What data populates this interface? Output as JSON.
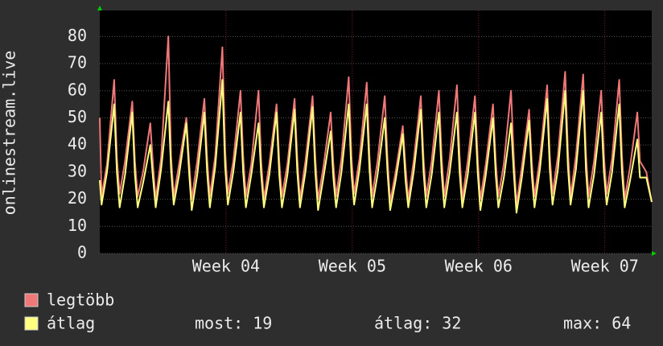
{
  "chart_data": {
    "type": "line",
    "ylabel": "onlinestream.live",
    "xlim": [
      0,
      30.6
    ],
    "xticks": [
      {
        "value": 7,
        "label": "Week 04"
      },
      {
        "value": 14,
        "label": "Week 05"
      },
      {
        "value": 21,
        "label": "Week 06"
      },
      {
        "value": 28,
        "label": "Week 07"
      }
    ],
    "ylim": [
      0,
      89
    ],
    "yticks": [
      0,
      10,
      20,
      30,
      40,
      50,
      60,
      70,
      80
    ],
    "grid": true,
    "x": [
      0,
      0.1,
      0.4,
      0.8,
      0.95,
      1.1,
      1.4,
      1.8,
      1.95,
      2.1,
      2.4,
      2.8,
      2.95,
      3.1,
      3.4,
      3.8,
      3.95,
      4.1,
      4.4,
      4.8,
      4.95,
      5.1,
      5.4,
      5.8,
      5.95,
      6.1,
      6.4,
      6.8,
      6.95,
      7.1,
      7.4,
      7.8,
      7.95,
      8.1,
      8.4,
      8.8,
      8.95,
      9.1,
      9.4,
      9.8,
      9.95,
      10.1,
      10.4,
      10.8,
      10.95,
      11.1,
      11.4,
      11.8,
      11.95,
      12.1,
      12.4,
      12.8,
      12.95,
      13.1,
      13.4,
      13.8,
      13.95,
      14.1,
      14.4,
      14.8,
      14.95,
      15.1,
      15.4,
      15.8,
      15.95,
      16.1,
      16.4,
      16.8,
      16.95,
      17.1,
      17.4,
      17.8,
      17.95,
      18.1,
      18.4,
      18.8,
      18.95,
      19.1,
      19.4,
      19.8,
      19.95,
      20.1,
      20.4,
      20.8,
      20.95,
      21.1,
      21.4,
      21.8,
      21.95,
      22.1,
      22.4,
      22.8,
      22.95,
      23.1,
      23.4,
      23.8,
      23.95,
      24.1,
      24.4,
      24.8,
      24.95,
      25.1,
      25.4,
      25.8,
      25.95,
      26.1,
      26.4,
      26.8,
      26.95,
      27.1,
      27.4,
      27.8,
      27.95,
      28.1,
      28.4,
      28.8,
      28.95,
      29.1,
      29.4,
      29.8,
      29.95,
      30.3,
      30.6
    ],
    "series": [
      {
        "name": "legtöbb",
        "color": "#f07878",
        "values": [
          50,
          21,
          33,
          64,
          35,
          22,
          34,
          56,
          34,
          21,
          30,
          48,
          33,
          20,
          35,
          80,
          36,
          21,
          33,
          50,
          34,
          20,
          34,
          57,
          35,
          21,
          36,
          76,
          38,
          22,
          34,
          60,
          36,
          21,
          33,
          60,
          34,
          20,
          33,
          55,
          34,
          21,
          33,
          57,
          35,
          20,
          34,
          58,
          35,
          20,
          32,
          52,
          33,
          21,
          35,
          65,
          36,
          22,
          35,
          63,
          36,
          21,
          34,
          58,
          35,
          19,
          30,
          47,
          32,
          20,
          34,
          58,
          35,
          21,
          34,
          60,
          36,
          21,
          35,
          62,
          36,
          20,
          34,
          58,
          35,
          20,
          33,
          55,
          34,
          21,
          33,
          60,
          36,
          18,
          32,
          53,
          34,
          21,
          35,
          62,
          36,
          22,
          36,
          67,
          38,
          21,
          36,
          66,
          37,
          21,
          34,
          60,
          36,
          22,
          35,
          64,
          36,
          20,
          32,
          52,
          34,
          30,
          19
        ]
      },
      {
        "name": "átlag",
        "color": "#ffff80",
        "values": [
          27,
          18,
          30,
          55,
          30,
          17,
          29,
          52,
          29,
          17,
          26,
          40,
          28,
          17,
          31,
          56,
          31,
          18,
          29,
          48,
          30,
          16,
          29,
          52,
          30,
          17,
          32,
          64,
          32,
          18,
          30,
          52,
          30,
          17,
          29,
          48,
          29,
          17,
          29,
          52,
          29,
          17,
          29,
          53,
          30,
          17,
          30,
          54,
          30,
          16,
          28,
          45,
          28,
          17,
          30,
          55,
          30,
          18,
          31,
          55,
          31,
          17,
          29,
          50,
          30,
          16,
          27,
          44,
          27,
          17,
          30,
          53,
          30,
          17,
          29,
          52,
          30,
          17,
          30,
          52,
          30,
          17,
          29,
          52,
          30,
          16,
          29,
          50,
          29,
          17,
          28,
          48,
          30,
          15,
          28,
          49,
          29,
          17,
          31,
          57,
          31,
          18,
          31,
          60,
          32,
          18,
          31,
          60,
          31,
          17,
          29,
          52,
          30,
          18,
          30,
          55,
          30,
          17,
          27,
          42,
          28,
          28,
          19
        ]
      }
    ],
    "stats": [
      "most: 19",
      "átlag: 32",
      "max: 64"
    ]
  }
}
